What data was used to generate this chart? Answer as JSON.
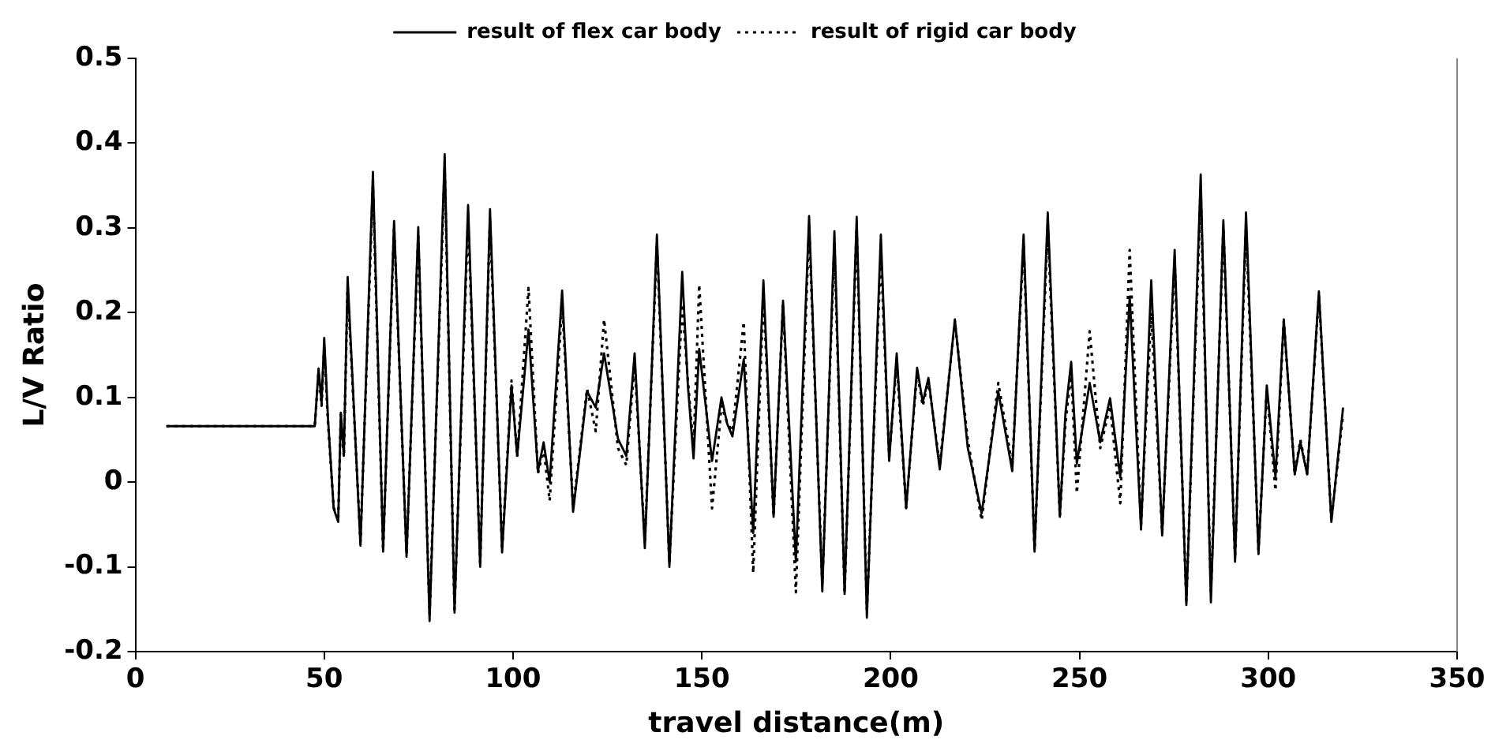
{
  "chart_data": {
    "type": "line",
    "xlabel": "travel distance(m)",
    "ylabel": "L/V Ratio",
    "x": [
      8.2,
      47.5,
      48.5,
      49.3,
      50,
      51,
      52.5,
      53.7,
      54.4,
      55.2,
      56.2,
      59.6,
      62.9,
      65.6,
      68.5,
      71.8,
      74.9,
      77.9,
      81.9,
      84.5,
      88.1,
      91.3,
      93.9,
      97.1,
      99.6,
      101.1,
      104.1,
      106.6,
      108.1,
      109.7,
      113,
      115.9,
      119.6,
      121.9,
      124.1,
      127.8,
      130,
      132.2,
      134.9,
      138.1,
      141.4,
      144.8,
      146.3,
      147.8,
      149.3,
      152.7,
      155.2,
      156.7,
      158.1,
      161.1,
      163.6,
      166.3,
      169,
      171.5,
      174.9,
      178.4,
      181.9,
      185.1,
      187.8,
      191,
      193.7,
      197.4,
      199.6,
      201.6,
      204.1,
      207,
      208.5,
      210,
      213,
      217,
      220.4,
      224.1,
      228.5,
      232.2,
      235.2,
      238.1,
      241.6,
      244.8,
      246.3,
      247.8,
      249.3,
      252.7,
      255.5,
      258.1,
      260.8,
      263.3,
      266.3,
      269,
      271.9,
      275.2,
      278.3,
      282.1,
      284.8,
      288.1,
      291.2,
      294.1,
      297.4,
      299.6,
      301.9,
      304.1,
      307,
      308.5,
      310.3,
      313.4,
      316.7,
      319.8
    ],
    "series": [
      {
        "name": "result of flex car body",
        "color": "#000000",
        "line_style": "solid",
        "values": [
          0.066,
          0.066,
          0.134,
          0.094,
          0.17,
          0.075,
          -0.031,
          -0.047,
          0.082,
          0.031,
          0.242,
          -0.075,
          0.366,
          -0.082,
          0.308,
          -0.088,
          0.301,
          -0.164,
          0.387,
          -0.154,
          0.327,
          -0.1,
          0.322,
          -0.083,
          0.114,
          0.031,
          0.18,
          0.013,
          0.047,
          0,
          0.226,
          -0.035,
          0.107,
          0.088,
          0.152,
          0.051,
          0.031,
          0.152,
          -0.078,
          0.292,
          -0.1,
          0.248,
          0.114,
          0.028,
          0.157,
          0.025,
          0.1,
          0.069,
          0.054,
          0.145,
          -0.06,
          0.238,
          -0.041,
          0.214,
          -0.094,
          0.314,
          -0.129,
          0.296,
          -0.132,
          0.313,
          -0.16,
          0.292,
          0.025,
          0.152,
          -0.031,
          0.135,
          0.094,
          0.123,
          0.015,
          0.192,
          0.041,
          -0.037,
          0.107,
          0.013,
          0.292,
          -0.082,
          0.318,
          -0.041,
          0.082,
          0.142,
          0.022,
          0.117,
          0.047,
          0.099,
          0.006,
          0.219,
          -0.056,
          0.238,
          -0.063,
          0.274,
          -0.145,
          0.363,
          -0.142,
          0.309,
          -0.094,
          0.318,
          -0.085,
          0.114,
          0.006,
          0.192,
          0.009,
          0.047,
          0.009,
          0.225,
          -0.047,
          0.088
        ]
      },
      {
        "name": "result of rigid car body",
        "color": "#000000",
        "line_style": "dotted",
        "values": [
          0.066,
          0.066,
          0.13,
          0.09,
          0.16,
          0.07,
          -0.03,
          -0.045,
          0.08,
          0.03,
          0.23,
          -0.07,
          0.35,
          -0.08,
          0.3,
          -0.085,
          0.29,
          -0.155,
          0.37,
          -0.15,
          0.31,
          -0.095,
          0.31,
          -0.08,
          0.12,
          0.03,
          0.229,
          0.01,
          0.04,
          -0.022,
          0.21,
          -0.03,
          0.11,
          0.06,
          0.192,
          0.04,
          0.02,
          0.14,
          -0.07,
          0.28,
          -0.095,
          0.21,
          0.12,
          0.04,
          0.233,
          -0.031,
          0.09,
          0.07,
          0.06,
          0.189,
          -0.107,
          0.22,
          -0.04,
          0.21,
          -0.13,
          0.3,
          -0.12,
          0.28,
          -0.13,
          0.3,
          -0.15,
          0.27,
          0.03,
          0.14,
          -0.03,
          0.13,
          0.09,
          0.12,
          0.02,
          0.19,
          0.05,
          -0.045,
          0.117,
          0.02,
          0.28,
          -0.08,
          0.3,
          -0.04,
          0.07,
          0.13,
          -0.013,
          0.178,
          0.04,
          0.09,
          -0.025,
          0.274,
          -0.05,
          0.2,
          -0.06,
          0.26,
          -0.14,
          0.34,
          -0.13,
          0.3,
          -0.09,
          0.3,
          -0.08,
          0.11,
          -0.01,
          0.19,
          0.01,
          0.05,
          0.01,
          0.22,
          -0.045,
          0.08
        ]
      }
    ],
    "xlim": [
      0,
      350
    ],
    "xticks": [
      0,
      50,
      100,
      150,
      200,
      250,
      300,
      350
    ],
    "ylim": [
      -0.2,
      0.5
    ],
    "yticks": [
      -0.2,
      -0.1,
      0,
      0.1,
      0.2,
      0.3,
      0.4,
      0.5
    ],
    "grid": false,
    "legend": "top",
    "marker": "none"
  }
}
